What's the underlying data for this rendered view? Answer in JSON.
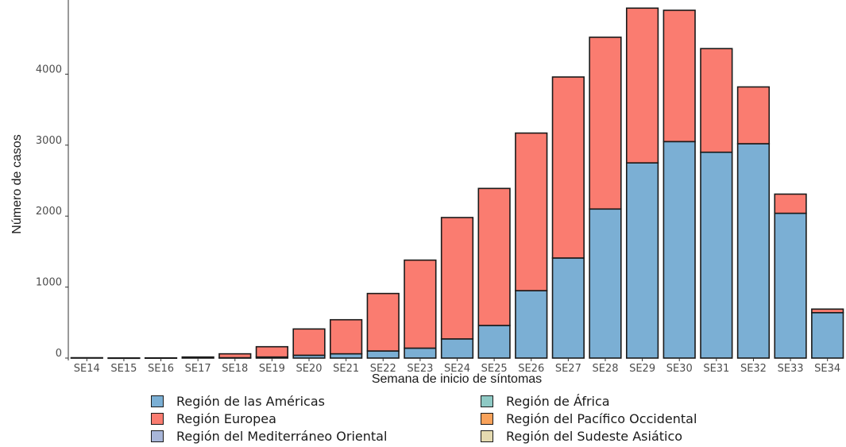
{
  "chart_data": {
    "type": "bar",
    "stacked": true,
    "title": "",
    "xlabel": "Semana de inicio de síntomas",
    "ylabel": "Número de casos",
    "ylim": [
      0,
      5000
    ],
    "yticks": [
      0,
      1000,
      2000,
      3000,
      4000
    ],
    "ytick_labels": [
      "0",
      "1000",
      "2000",
      "3000",
      "4000"
    ],
    "grid": false,
    "legend_position": "bottom",
    "categories": [
      "SE14",
      "SE15",
      "SE16",
      "SE17",
      "SE18",
      "SE19",
      "SE20",
      "SE21",
      "SE22",
      "SE23",
      "SE24",
      "SE25",
      "SE26",
      "SE27",
      "SE28",
      "SE29",
      "SE30",
      "SE31",
      "SE32",
      "SE33",
      "SE34"
    ],
    "series": [
      {
        "name": "Región de las Américas",
        "color": "#7bafd4",
        "values": [
          0,
          0,
          0,
          0,
          5,
          15,
          40,
          60,
          100,
          140,
          270,
          460,
          950,
          1410,
          2100,
          2750,
          3050,
          2900,
          3020,
          2040,
          640
        ]
      },
      {
        "name": "Región Europea",
        "color": "#fa7c70",
        "values": [
          5,
          2,
          3,
          15,
          55,
          145,
          370,
          480,
          810,
          1240,
          1710,
          1930,
          2220,
          2550,
          2420,
          2180,
          1850,
          1460,
          800,
          270,
          50
        ]
      },
      {
        "name": "Región del Mediterráneo Oriental",
        "color": "#a8b6d8",
        "values": [
          0,
          0,
          0,
          0,
          0,
          0,
          0,
          0,
          0,
          0,
          0,
          0,
          0,
          0,
          0,
          0,
          0,
          0,
          0,
          0,
          0
        ]
      },
      {
        "name": "Región de África",
        "color": "#8ec9c4",
        "values": [
          0,
          0,
          0,
          0,
          0,
          0,
          0,
          0,
          0,
          0,
          0,
          0,
          0,
          0,
          0,
          0,
          0,
          0,
          0,
          0,
          0
        ]
      },
      {
        "name": "Región del Pacífico Occidental",
        "color": "#f9a25a",
        "values": [
          0,
          0,
          0,
          0,
          0,
          0,
          0,
          0,
          0,
          0,
          0,
          0,
          0,
          0,
          0,
          0,
          0,
          0,
          0,
          0,
          0
        ]
      },
      {
        "name": "Región del Sudeste Asiático",
        "color": "#e4dab0",
        "values": [
          0,
          0,
          0,
          0,
          0,
          0,
          0,
          0,
          0,
          0,
          0,
          0,
          0,
          0,
          0,
          0,
          0,
          0,
          0,
          0,
          0
        ]
      }
    ]
  },
  "legend": {
    "items": [
      {
        "label": "Región de las Américas",
        "color": "#7bafd4"
      },
      {
        "label": "Región de África",
        "color": "#8ec9c4"
      },
      {
        "label": "Región Europea",
        "color": "#fa7c70"
      },
      {
        "label": "Región del Pacífico Occidental",
        "color": "#f9a25a"
      },
      {
        "label": "Región del Mediterráneo Oriental",
        "color": "#a8b6d8"
      },
      {
        "label": "Región del Sudeste Asiático",
        "color": "#e4dab0"
      }
    ]
  }
}
